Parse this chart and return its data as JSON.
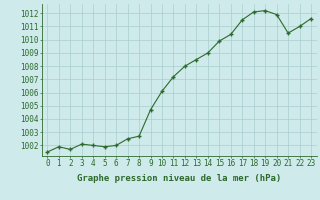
{
  "x": [
    0,
    1,
    2,
    3,
    4,
    5,
    6,
    7,
    8,
    9,
    10,
    11,
    12,
    13,
    14,
    15,
    16,
    17,
    18,
    19,
    20,
    21,
    22,
    23
  ],
  "y": [
    1001.5,
    1001.9,
    1001.7,
    1002.1,
    1002.0,
    1001.9,
    1002.0,
    1002.5,
    1002.7,
    1004.7,
    1006.1,
    1007.2,
    1008.0,
    1008.5,
    1009.0,
    1009.9,
    1010.4,
    1011.5,
    1012.1,
    1012.2,
    1011.9,
    1010.5,
    1011.0,
    1011.6
  ],
  "line_color": "#2d6a2d",
  "marker_color": "#2d6a2d",
  "bg_color": "#ceeaea",
  "grid_color": "#aacece",
  "axis_color": "#2d6a2d",
  "tick_color": "#2d6a2d",
  "xlabel": "Graphe pression niveau de la mer (hPa)",
  "ylim": [
    1001.2,
    1012.7
  ],
  "yticks": [
    1002,
    1003,
    1004,
    1005,
    1006,
    1007,
    1008,
    1009,
    1010,
    1011,
    1012
  ],
  "xticks": [
    0,
    1,
    2,
    3,
    4,
    5,
    6,
    7,
    8,
    9,
    10,
    11,
    12,
    13,
    14,
    15,
    16,
    17,
    18,
    19,
    20,
    21,
    22,
    23
  ],
  "xlabel_fontsize": 6.5,
  "tick_fontsize": 5.5
}
